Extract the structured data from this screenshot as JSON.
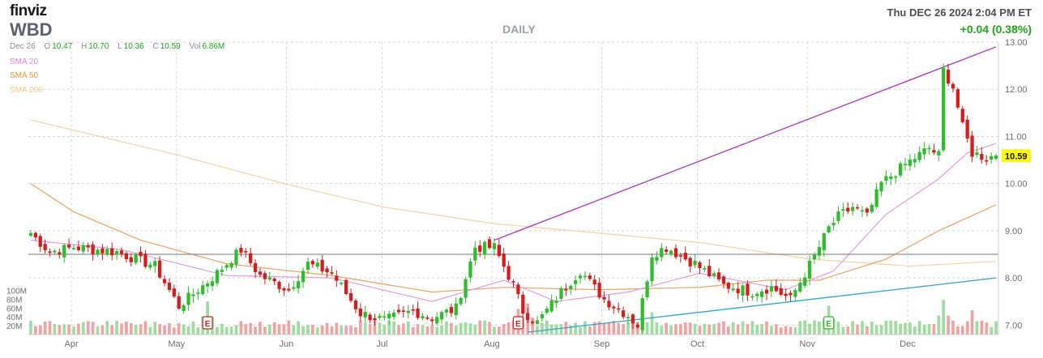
{
  "header": {
    "logo_text": "finviz",
    "ticker": "WBD",
    "period": "DAILY",
    "datetime": "Thu DEC 26 2024 2:04 PM ET",
    "change": "+0.04 (0.38%)",
    "quote": {
      "date": "Dec 26",
      "o_label": "O",
      "o": "10.47",
      "h_label": "H",
      "h": "10.70",
      "l_label": "L",
      "l": "10.36",
      "c_label": "C",
      "c": "10.59",
      "vol_label": "Vol",
      "vol": "6.86M"
    },
    "sma_labels": {
      "sma20": "SMA 20",
      "sma50": "SMA 50",
      "sma200": "SMA 200"
    }
  },
  "colors": {
    "up": "#2dbd2d",
    "down": "#d81b1b",
    "up_volume": "#9fdc9f",
    "down_volume": "#f1a3a3",
    "sma20": "#e79be7",
    "sma50": "#f4a258",
    "sma200": "#f6d3a2",
    "trend_upper": "#b033c9",
    "trend_lower": "#2aa7cf",
    "resistance": "#777777",
    "last_price_bg": "#ffff00"
  },
  "chart_data": {
    "type": "candlestick",
    "y_axis": {
      "min": 6.8,
      "max": 13.0,
      "ticks": [
        "7.00",
        "8.00",
        "9.00",
        "10.00",
        "11.00",
        "12.00",
        "13.00"
      ],
      "side": "right"
    },
    "volume_axis": {
      "min": 0,
      "max": 110,
      "unit": "M",
      "ticks": [
        "20M",
        "40M",
        "60M",
        "80M",
        "100M"
      ]
    },
    "x_axis": {
      "start": "2024-03-19",
      "end": "2024-12-26",
      "months": [
        {
          "label": "Apr",
          "date": "2024-04-01"
        },
        {
          "label": "May",
          "date": "2024-05-01"
        },
        {
          "label": "Jun",
          "date": "2024-06-03"
        },
        {
          "label": "Jul",
          "date": "2024-07-01"
        },
        {
          "label": "Aug",
          "date": "2024-08-01"
        },
        {
          "label": "Sep",
          "date": "2024-09-03"
        },
        {
          "label": "Oct",
          "date": "2024-10-01"
        },
        {
          "label": "Nov",
          "date": "2024-11-01"
        },
        {
          "label": "Dec",
          "date": "2024-12-02"
        }
      ]
    },
    "close_anchors": [
      [
        "2024-03-19",
        8.95
      ],
      [
        "2024-03-25",
        8.55
      ],
      [
        "2024-04-01",
        8.65
      ],
      [
        "2024-04-12",
        8.55
      ],
      [
        "2024-04-24",
        8.25
      ],
      [
        "2024-05-01",
        7.4
      ],
      [
        "2024-05-10",
        8.0
      ],
      [
        "2024-05-20",
        8.6
      ],
      [
        "2024-05-24",
        8.05
      ],
      [
        "2024-06-03",
        7.75
      ],
      [
        "2024-06-07",
        8.3
      ],
      [
        "2024-06-14",
        8.1
      ],
      [
        "2024-06-24",
        7.25
      ],
      [
        "2024-07-01",
        7.1
      ],
      [
        "2024-07-09",
        7.3
      ],
      [
        "2024-07-15",
        7.15
      ],
      [
        "2024-07-22",
        7.35
      ],
      [
        "2024-07-26",
        8.65
      ],
      [
        "2024-08-01",
        8.65
      ],
      [
        "2024-08-07",
        7.85
      ],
      [
        "2024-08-09",
        7.3
      ],
      [
        "2024-08-14",
        7.05
      ],
      [
        "2024-08-21",
        7.7
      ],
      [
        "2024-08-27",
        8.15
      ],
      [
        "2024-09-03",
        7.55
      ],
      [
        "2024-09-10",
        7.2
      ],
      [
        "2024-09-12",
        7.0
      ],
      [
        "2024-09-17",
        8.5
      ],
      [
        "2024-09-20",
        8.65
      ],
      [
        "2024-09-30",
        8.3
      ],
      [
        "2024-10-08",
        7.85
      ],
      [
        "2024-10-16",
        7.7
      ],
      [
        "2024-10-22",
        7.8
      ],
      [
        "2024-10-28",
        7.55
      ],
      [
        "2024-11-04",
        8.45
      ],
      [
        "2024-11-07",
        9.05
      ],
      [
        "2024-11-11",
        9.3
      ],
      [
        "2024-11-14",
        9.5
      ],
      [
        "2024-11-19",
        9.3
      ],
      [
        "2024-11-22",
        10.0
      ],
      [
        "2024-11-29",
        10.4
      ],
      [
        "2024-12-06",
        10.75
      ],
      [
        "2024-12-10",
        10.6
      ],
      [
        "2024-12-11",
        12.4
      ],
      [
        "2024-12-13",
        12.05
      ],
      [
        "2024-12-17",
        11.2
      ],
      [
        "2024-12-19",
        10.65
      ],
      [
        "2024-12-24",
        10.55
      ],
      [
        "2024-12-26",
        10.59
      ]
    ],
    "sma20": [
      [
        "2024-03-19",
        8.8
      ],
      [
        "2024-04-15",
        8.6
      ],
      [
        "2024-05-15",
        8.05
      ],
      [
        "2024-06-15",
        8.0
      ],
      [
        "2024-07-15",
        7.5
      ],
      [
        "2024-08-05",
        7.95
      ],
      [
        "2024-08-20",
        7.5
      ],
      [
        "2024-09-10",
        7.7
      ],
      [
        "2024-10-01",
        8.1
      ],
      [
        "2024-10-25",
        7.75
      ],
      [
        "2024-11-08",
        8.15
      ],
      [
        "2024-11-25",
        9.35
      ],
      [
        "2024-12-10",
        10.1
      ],
      [
        "2024-12-18",
        10.65
      ],
      [
        "2024-12-26",
        10.85
      ]
    ],
    "sma50": [
      [
        "2024-03-19",
        10.0
      ],
      [
        "2024-04-01",
        9.4
      ],
      [
        "2024-04-20",
        8.8
      ],
      [
        "2024-05-15",
        8.3
      ],
      [
        "2024-06-15",
        8.05
      ],
      [
        "2024-07-15",
        7.7
      ],
      [
        "2024-08-05",
        7.8
      ],
      [
        "2024-09-01",
        7.75
      ],
      [
        "2024-10-01",
        7.8
      ],
      [
        "2024-10-20",
        7.95
      ],
      [
        "2024-11-05",
        7.95
      ],
      [
        "2024-11-25",
        8.4
      ],
      [
        "2024-12-10",
        9.0
      ],
      [
        "2024-12-26",
        9.55
      ]
    ],
    "sma200": [
      [
        "2024-03-19",
        11.35
      ],
      [
        "2024-05-01",
        10.6
      ],
      [
        "2024-06-01",
        10.0
      ],
      [
        "2024-07-01",
        9.5
      ],
      [
        "2024-08-01",
        9.15
      ],
      [
        "2024-09-01",
        8.95
      ],
      [
        "2024-10-01",
        8.75
      ],
      [
        "2024-11-01",
        8.4
      ],
      [
        "2024-12-01",
        8.25
      ],
      [
        "2024-12-26",
        8.35
      ]
    ],
    "trendlines": [
      {
        "color_key": "trend_upper",
        "from": [
          "2024-08-01",
          8.8
        ],
        "to": [
          "2024-12-26",
          12.9
        ]
      },
      {
        "color_key": "trend_lower",
        "from": [
          "2024-08-12",
          6.85
        ],
        "to": [
          "2024-12-26",
          8.0
        ]
      }
    ],
    "resistance_level": 8.5,
    "events": [
      {
        "label": "E",
        "date": "2024-05-09",
        "color_key": "down"
      },
      {
        "label": "E",
        "date": "2024-08-08",
        "color_key": "down"
      },
      {
        "label": "E",
        "date": "2024-11-07",
        "color_key": "up"
      }
    ],
    "volume_spikes": [
      [
        "2024-05-09",
        75
      ],
      [
        "2024-08-08",
        58
      ],
      [
        "2024-08-12",
        70
      ],
      [
        "2024-09-17",
        50
      ],
      [
        "2024-11-07",
        65
      ],
      [
        "2024-12-11",
        78
      ],
      [
        "2024-12-19",
        55
      ]
    ],
    "last_price": "10.59"
  }
}
